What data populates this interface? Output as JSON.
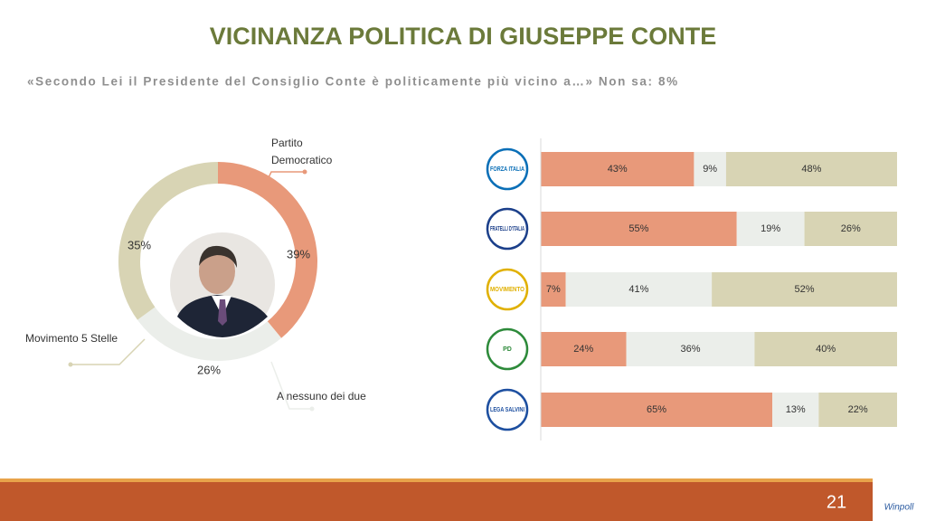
{
  "title": "VICINANZA POLITICA DI GIUSEPPE CONTE",
  "subtitle": "«Secondo Lei il Presidente del Consiglio Conte è politicamente più vicino a…» Non sa: 8%",
  "chart_data": [
    {
      "type": "pie",
      "categories": [
        "Partito Democratico",
        "A nessuno dei due",
        "Movimento 5 Stelle"
      ],
      "values": [
        39,
        26,
        35
      ],
      "value_labels": [
        "39%",
        "26%",
        "35%"
      ],
      "colors": [
        "#e8997a",
        "#ebeeea",
        "#d8d4b4"
      ]
    },
    {
      "type": "stacked-bar-horizontal",
      "categories": [
        "FORZA ITALIA",
        "FRATELLI D'ITALIA",
        "MOVIMENTO",
        "PD",
        "LEGA SALVINI"
      ],
      "xlim": [
        0,
        100
      ],
      "series": [
        {
          "color": "#e8997a",
          "values": [
            43,
            55,
            7,
            24,
            65
          ],
          "value_labels": [
            "43%",
            "55%",
            "7%",
            "24%",
            "65%"
          ]
        },
        {
          "color": "#ebeeea",
          "values": [
            9,
            19,
            41,
            36,
            13
          ],
          "value_labels": [
            "9%",
            "19%",
            "41%",
            "36%",
            "13%"
          ]
        },
        {
          "color": "#d8d4b4",
          "values": [
            48,
            26,
            52,
            40,
            22
          ],
          "value_labels": [
            "48%",
            "26%",
            "52%",
            "40%",
            "22%"
          ]
        }
      ]
    }
  ],
  "footer": {
    "page": "21",
    "brand": "Winpoll"
  }
}
